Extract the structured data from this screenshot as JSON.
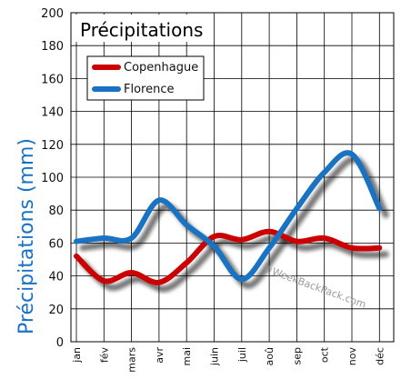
{
  "chart_data": {
    "type": "line",
    "title": "Précipitations",
    "ylabel": "Précipitations (mm)",
    "xlabel": "",
    "ylim": [
      0,
      200
    ],
    "yticks": [
      0,
      20,
      40,
      60,
      80,
      100,
      120,
      140,
      160,
      180,
      200
    ],
    "categories": [
      "jan",
      "fév",
      "mars",
      "avr",
      "mai",
      "juin",
      "juil",
      "aoû",
      "sep",
      "oct",
      "nov",
      "déc"
    ],
    "grid": true,
    "legend_position": "top-left",
    "series": [
      {
        "name": "Copenhague",
        "color": "#cc0000",
        "values": [
          52,
          37,
          42,
          36,
          48,
          64,
          62,
          67,
          61,
          63,
          57,
          57
        ]
      },
      {
        "name": "Florence",
        "color": "#1a73c2",
        "values": [
          61,
          63,
          63,
          86,
          71,
          58,
          38,
          57,
          81,
          103,
          114,
          81
        ]
      }
    ],
    "watermark": "©WeekBackPack.com"
  }
}
